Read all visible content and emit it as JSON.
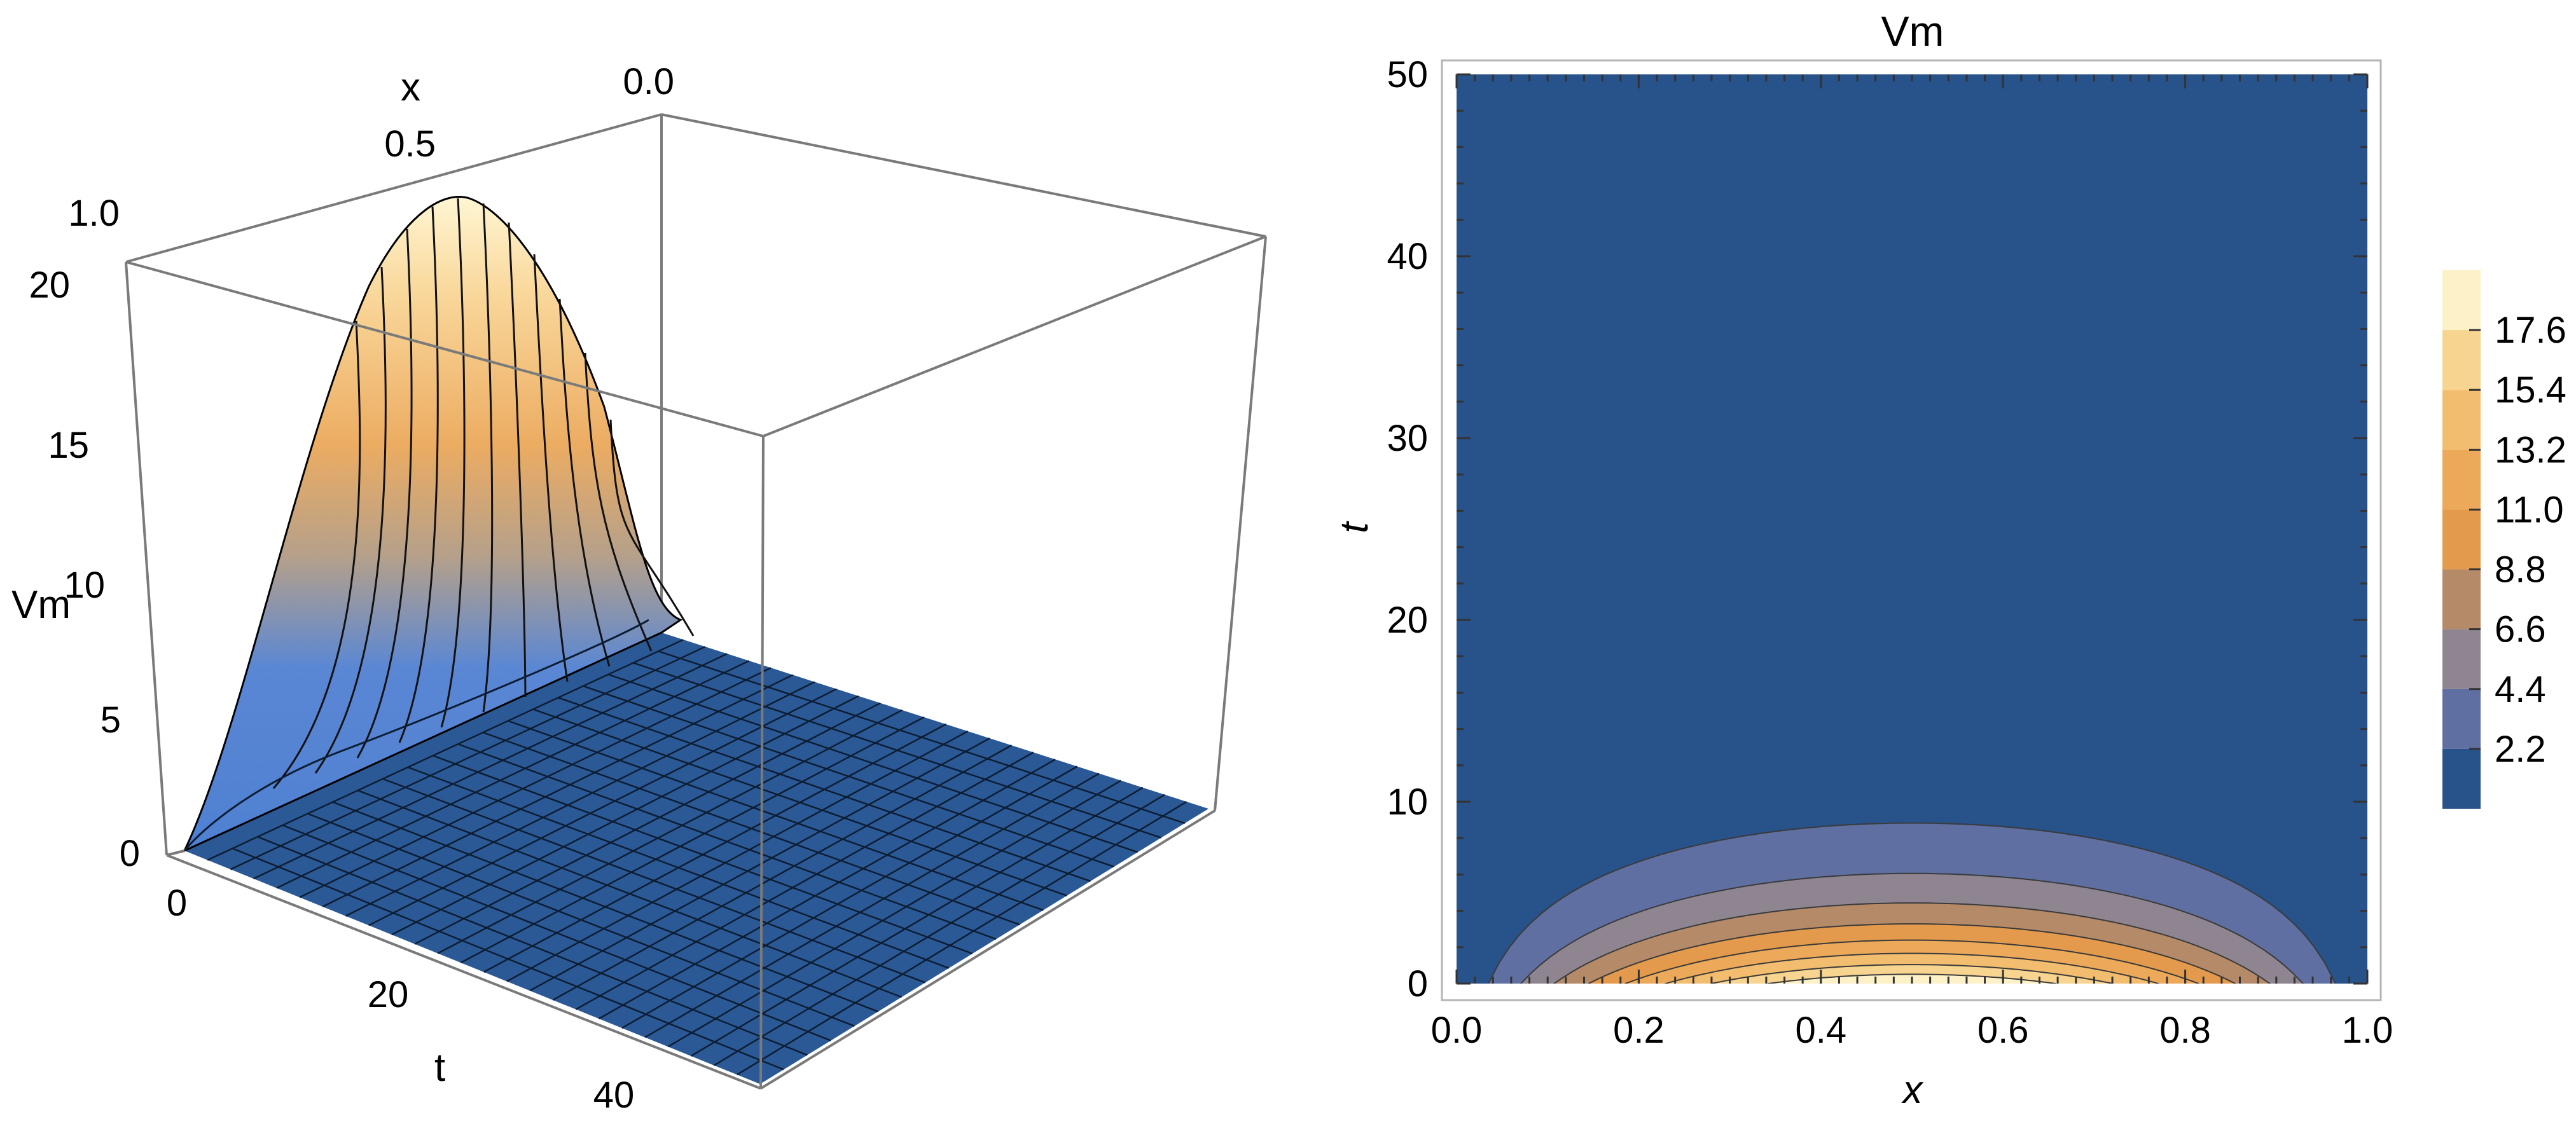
{
  "chart_data": [
    {
      "type": "surface3d",
      "function": "Vm(x,t) ≈ 20·sin(πx)·e^(−t/4)",
      "xlabel": "x",
      "ylabel": "t",
      "zlabel": "Vm",
      "x_ticks": [
        "1.0",
        "0.5",
        "0.0"
      ],
      "t_ticks": [
        "0",
        "20",
        "40"
      ],
      "z_ticks": [
        "0",
        "5",
        "10",
        "15",
        "20"
      ],
      "xlim": [
        0,
        1
      ],
      "tlim": [
        0,
        50
      ],
      "zlim": [
        0,
        20
      ],
      "peak": {
        "x": 0.5,
        "t": 0,
        "Vm": 20
      },
      "mesh_lines": {
        "x": 19,
        "t": 25
      },
      "colors": {
        "high": "#fff3c8",
        "mid": "#e9a65a",
        "low": "#4f80d2",
        "floor": "#2b5996"
      }
    },
    {
      "type": "contour",
      "title": "Vm",
      "xlabel": "x",
      "ylabel": "t",
      "xlim": [
        0,
        1
      ],
      "ylim": [
        0,
        50
      ],
      "x_ticks": [
        "0.0",
        "0.2",
        "0.4",
        "0.6",
        "0.8",
        "1.0"
      ],
      "y_ticks": [
        "0",
        "10",
        "20",
        "30",
        "40",
        "50"
      ],
      "contour_levels": [
        2.2,
        4.4,
        6.6,
        8.8,
        11.0,
        13.2,
        15.4,
        17.6
      ],
      "legend": {
        "labels": [
          "2.2",
          "4.4",
          "6.6",
          "8.8",
          "11.0",
          "13.2",
          "15.4",
          "17.6"
        ],
        "colors": [
          "#27528a",
          "#5f6fa1",
          "#8e8590",
          "#b48a68",
          "#e49a4c",
          "#eda95a",
          "#f2bd6f",
          "#f7d48f",
          "#fdf1c7"
        ]
      },
      "background_color": "#27528a"
    }
  ]
}
